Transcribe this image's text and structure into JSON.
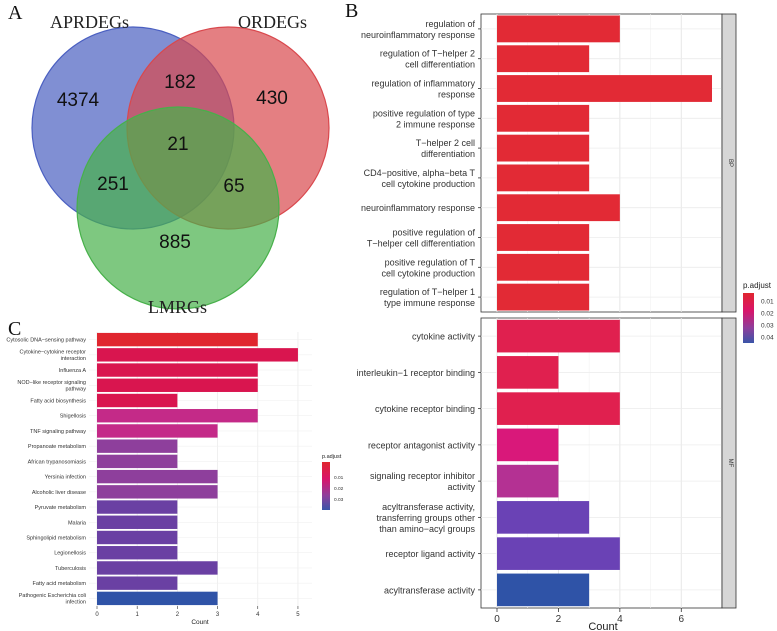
{
  "panels": {
    "a": "A",
    "b": "B",
    "c": "C"
  },
  "venn": {
    "sets": [
      {
        "name": "APRDEGs",
        "color": "#4a5fc1"
      },
      {
        "name": "ORDEGs",
        "color": "#d9484d"
      },
      {
        "name": "LMRGs",
        "color": "#47b04a"
      }
    ],
    "regions": [
      {
        "id": "apr_only",
        "value": "4374"
      },
      {
        "id": "apr_or",
        "value": "182"
      },
      {
        "id": "or_only",
        "value": "430"
      },
      {
        "id": "all_three",
        "value": "21"
      },
      {
        "id": "apr_lm",
        "value": "251"
      },
      {
        "id": "or_lm",
        "value": "65"
      },
      {
        "id": "lm_only",
        "value": "885"
      }
    ]
  },
  "chart_data": [
    {
      "type": "bar",
      "orientation": "horizontal",
      "facets": [
        {
          "name": "BP",
          "categories": [
            "regulation of neuroinflammatory response",
            "regulation of T-helper 2 cell differentiation",
            "regulation of inflammatory response",
            "positive regulation of type 2 immune response",
            "T-helper 2 cell differentiation",
            "CD4-positive, alpha-beta T cell cytokine production",
            "neuroinflammatory response",
            "positive regulation of T-helper cell differentiation",
            "positive regulation of T cell cytokine production",
            "regulation of T-helper 1 type immune response"
          ],
          "category_lines": [
            [
              "regulation of",
              "neuroinflammatory response"
            ],
            [
              "regulation of T−helper 2",
              "cell differentiation"
            ],
            [
              "regulation of inflammatory",
              "response"
            ],
            [
              "positive regulation of type",
              "2 immune response"
            ],
            [
              "T−helper 2 cell",
              "differentiation"
            ],
            [
              "CD4−positive, alpha−beta T",
              "cell cytokine production"
            ],
            [
              "neuroinflammatory response"
            ],
            [
              "positive regulation of",
              "T−helper cell differentiation"
            ],
            [
              "positive regulation of T",
              "cell cytokine production"
            ],
            [
              "regulation of T−helper 1",
              "type immune response"
            ]
          ],
          "values": [
            4,
            3,
            7,
            3,
            3,
            3,
            4,
            3,
            3,
            3
          ],
          "colors": [
            "#e22a35",
            "#e22a35",
            "#e22a35",
            "#e22a35",
            "#e22a35",
            "#e22a35",
            "#e22a35",
            "#e22a35",
            "#e22a35",
            "#e22a35"
          ]
        },
        {
          "name": "MF",
          "categories": [
            "cytokine activity",
            "interleukin-1 receptor binding",
            "cytokine receptor binding",
            "receptor antagonist activity",
            "signaling receptor inhibitor activity",
            "acyltransferase activity, transferring groups other than amino-acyl groups",
            "receptor ligand activity",
            "acyltransferase activity"
          ],
          "category_lines": [
            [
              "cytokine activity"
            ],
            [
              "interleukin−1 receptor binding"
            ],
            [
              "cytokine receptor binding"
            ],
            [
              "receptor antagonist activity"
            ],
            [
              "signaling receptor inhibitor",
              "activity"
            ],
            [
              "acyltransferase activity,",
              "transferring groups other",
              "than amino−acyl groups"
            ],
            [
              "receptor ligand activity"
            ],
            [
              "acyltransferase activity"
            ]
          ],
          "values": [
            4,
            2,
            4,
            2,
            2,
            3,
            4,
            3
          ],
          "colors": [
            "#e0204f",
            "#e0204f",
            "#e0204f",
            "#d9187a",
            "#b43193",
            "#6a42b5",
            "#6a42b5",
            "#2f53a7"
          ]
        }
      ],
      "xlabel": "Count",
      "xticks": [
        "0",
        "2",
        "4",
        "6"
      ],
      "xlim": [
        0,
        7
      ],
      "legend": {
        "title": "p.adjust",
        "ticks": [
          "0.01",
          "0.02",
          "0.03",
          "0.04"
        ],
        "placement": "right"
      }
    },
    {
      "type": "bar",
      "orientation": "horizontal",
      "categories": [
        "Cytosolic DNA-sensing pathway",
        "Cytokine-cytokine receptor interaction",
        "Influenza A",
        "NOD-like receptor signaling pathway",
        "Fatty acid biosynthesis",
        "Shigellosis",
        "TNF signaling pathway",
        "Propanoate metabolism",
        "African trypanosomiasis",
        "Yersinia infection",
        "Alcoholic liver disease",
        "Pyruvate metabolism",
        "Malaria",
        "Sphingolipid metabolism",
        "Legionellosis",
        "Tuberculosis",
        "Fatty acid metabolism",
        "Pathogenic Escherichia coli infection"
      ],
      "category_lines": [
        [
          "Cytosolic DNA−sensing pathway"
        ],
        [
          "Cytokine−cytokine receptor",
          "interaction"
        ],
        [
          "Influenza A"
        ],
        [
          "NOD−like receptor signaling",
          "pathway"
        ],
        [
          "Fatty acid biosynthesis"
        ],
        [
          "Shigellosis"
        ],
        [
          "TNF signaling pathway"
        ],
        [
          "Propanoate metabolism"
        ],
        [
          "African trypanosomiasis"
        ],
        [
          "Yersinia infection"
        ],
        [
          "Alcoholic liver disease"
        ],
        [
          "Pyruvate metabolism"
        ],
        [
          "Malaria"
        ],
        [
          "Sphingolipid metabolism"
        ],
        [
          "Legionellosis"
        ],
        [
          "Tuberculosis"
        ],
        [
          "Fatty acid metabolism"
        ],
        [
          "Pathogenic Escherichia coli",
          "infection"
        ]
      ],
      "values": [
        4,
        5,
        4,
        4,
        2,
        4,
        3,
        2,
        2,
        3,
        3,
        2,
        2,
        2,
        2,
        3,
        2,
        3
      ],
      "colors": [
        "#e0262f",
        "#d9154f",
        "#d9154f",
        "#d9154f",
        "#d9154f",
        "#c42a88",
        "#c42a88",
        "#8e3f9c",
        "#8e3f9c",
        "#8e3f9c",
        "#8e3f9c",
        "#6a40a3",
        "#6a40a3",
        "#6a40a3",
        "#6a40a3",
        "#6a40a3",
        "#6a40a3",
        "#2f53a7"
      ],
      "xlabel": "Count",
      "xticks": [
        "0",
        "1",
        "2",
        "3",
        "4",
        "5"
      ],
      "xlim": [
        0,
        5.3
      ],
      "legend": {
        "title": "p.adjust",
        "ticks": [
          "0.01",
          "0.02",
          "0.03"
        ],
        "placement": "right"
      }
    }
  ]
}
